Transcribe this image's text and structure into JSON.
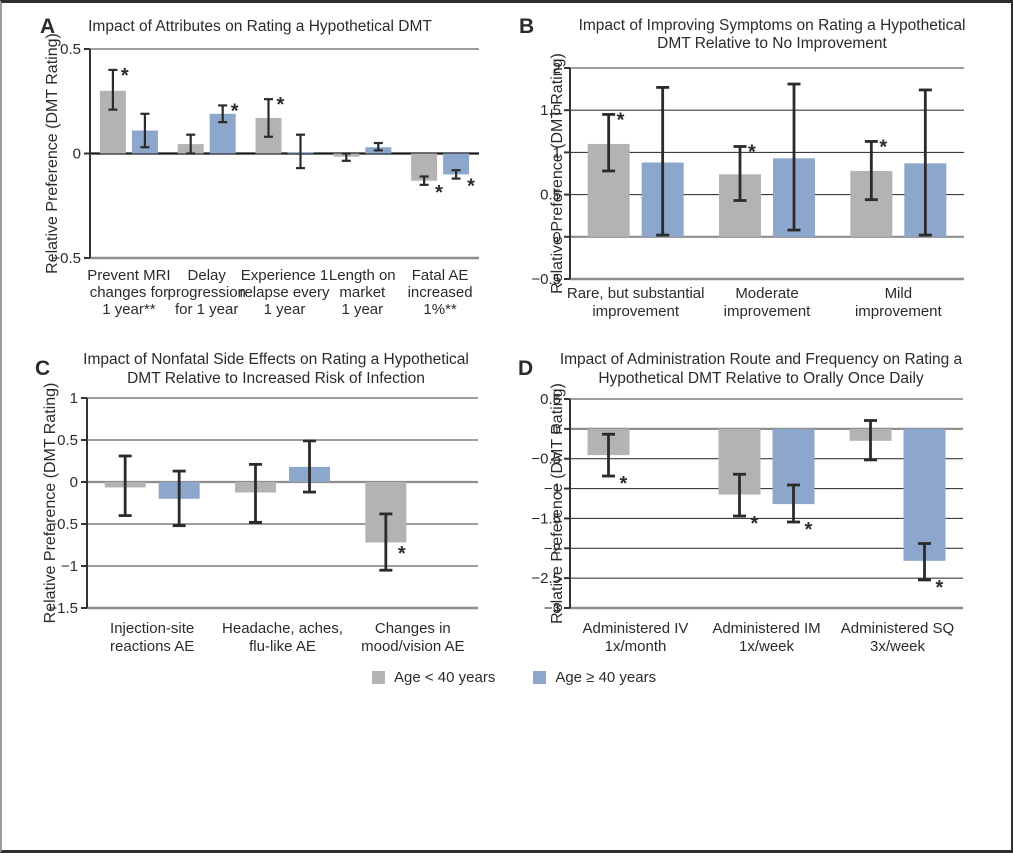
{
  "legend": {
    "items": [
      {
        "label": "Age < 40 years",
        "color": "#b3b3b3"
      },
      {
        "label": "Age ≥ 40 years",
        "color": "#8da6cc"
      }
    ]
  },
  "colors": {
    "bar_gray": "#b3b3b3",
    "bar_blue": "#8da6cc",
    "error_bar": "#2b2b2b",
    "gridline": "#3d3d3d",
    "zero_line_gray": "#8e8e8e",
    "zero_line_dark": "#1a1a1a",
    "bottom_line": "#8e8e8e",
    "axis": "#333333",
    "text": "#2b2b2b"
  },
  "chart_data": [
    {
      "id": "A",
      "type": "bar",
      "panel_label": "A",
      "title_lines": [
        "Impact of Attributes on Rating a Hypothetical DMT"
      ],
      "ylabel": "Relative Preference (DMT Rating)",
      "ylim": [
        -0.5,
        0.5
      ],
      "zero_dark": true,
      "grid": true,
      "ticks": [
        {
          "v": 0.5,
          "label": "0.5"
        },
        {
          "v": 0,
          "label": "0"
        },
        {
          "v": -0.5,
          "label": "−0.5"
        }
      ],
      "categories": [
        [
          "Prevent MRI",
          "changes for",
          "1 year**"
        ],
        [
          "Delay",
          "progression",
          "for 1 year"
        ],
        [
          "Experience 1",
          "relapse every",
          "1 year"
        ],
        [
          "Length on",
          "market",
          "1 year"
        ],
        [
          "Fatal AE",
          "increased",
          "1%**"
        ]
      ],
      "series": [
        {
          "name": "Age < 40 years",
          "color": "#b3b3b3",
          "points": [
            {
              "v": 0.3,
              "lo": 0.21,
              "hi": 0.4,
              "sig": true
            },
            {
              "v": 0.045,
              "lo": 0.0,
              "hi": 0.09
            },
            {
              "v": 0.17,
              "lo": 0.08,
              "hi": 0.26,
              "sig": true
            },
            {
              "v": -0.015,
              "lo": -0.035,
              "hi": 0.0
            },
            {
              "v": -0.13,
              "lo": -0.15,
              "hi": -0.11,
              "sig": true
            }
          ]
        },
        {
          "name": "Age ≥ 40 years",
          "color": "#8da6cc",
          "points": [
            {
              "v": 0.11,
              "lo": 0.03,
              "hi": 0.19
            },
            {
              "v": 0.19,
              "lo": 0.15,
              "hi": 0.23,
              "sig": true
            },
            {
              "v": 0.005,
              "lo": -0.07,
              "hi": 0.09
            },
            {
              "v": 0.03,
              "lo": 0.015,
              "hi": 0.05
            },
            {
              "v": -0.1,
              "lo": -0.12,
              "hi": -0.08,
              "sig": true
            }
          ]
        }
      ]
    },
    {
      "id": "B",
      "type": "bar",
      "panel_label": "B",
      "title_lines": [
        "Impact of Improving Symptoms on Rating a Hypothetical",
        "DMT Relative to No Improvement"
      ],
      "ylabel": "Relative Preference (DMT Rating)",
      "ylim": [
        -0.5,
        2
      ],
      "zero_dark": false,
      "grid": true,
      "ticks": [
        {
          "v": 2,
          "label": "2"
        },
        {
          "v": 1.5,
          "label": "1.5"
        },
        {
          "v": 1,
          "label": "1"
        },
        {
          "v": 0.5,
          "label": "0.5"
        },
        {
          "v": 0,
          "label": "0"
        },
        {
          "v": -0.5,
          "label": "−0.5"
        }
      ],
      "categories": [
        [
          "Rare, but substantial",
          "improvement"
        ],
        [
          "Moderate",
          "improvement"
        ],
        [
          "Mild",
          "improvement"
        ]
      ],
      "series": [
        {
          "name": "Age < 40 years",
          "color": "#b3b3b3",
          "points": [
            {
              "v": 1.1,
              "lo": 0.78,
              "hi": 1.45,
              "sig": true
            },
            {
              "v": 0.74,
              "lo": 0.43,
              "hi": 1.07,
              "sig": true
            },
            {
              "v": 0.78,
              "lo": 0.44,
              "hi": 1.13,
              "sig": true
            }
          ]
        },
        {
          "name": "Age ≥ 40 years",
          "color": "#8da6cc",
          "points": [
            {
              "v": 0.88,
              "lo": 0.02,
              "hi": 1.77
            },
            {
              "v": 0.93,
              "lo": 0.08,
              "hi": 1.81
            },
            {
              "v": 0.87,
              "lo": 0.02,
              "hi": 1.74
            }
          ]
        }
      ]
    },
    {
      "id": "C",
      "type": "bar",
      "panel_label": "C",
      "title_lines": [
        "Impact of Nonfatal Side Effects on Rating a Hypothetical",
        "DMT Relative to Increased Risk of Infection"
      ],
      "ylabel": "Relative Preference (DMT Rating)",
      "ylim": [
        -1.5,
        1
      ],
      "zero_dark": false,
      "grid": true,
      "ticks": [
        {
          "v": 1,
          "label": "1"
        },
        {
          "v": 0.5,
          "label": "0.5"
        },
        {
          "v": 0,
          "label": "0"
        },
        {
          "v": -0.5,
          "label": "−0.5"
        },
        {
          "v": -1,
          "label": "−1"
        },
        {
          "v": -1.5,
          "label": "−1.5"
        }
      ],
      "categories": [
        [
          "Injection-site",
          "reactions AE"
        ],
        [
          "Headache, aches,",
          "flu-like AE"
        ],
        [
          "Changes in",
          "mood/vision AE"
        ]
      ],
      "series": [
        {
          "name": "Age < 40 years",
          "color": "#b3b3b3",
          "points": [
            {
              "v": -0.065,
              "lo": -0.4,
              "hi": 0.31
            },
            {
              "v": -0.125,
              "lo": -0.48,
              "hi": 0.21
            },
            {
              "v": -0.72,
              "lo": -1.05,
              "hi": -0.38,
              "sig": true,
              "sig_pos": "side"
            }
          ]
        },
        {
          "name": "Age ≥ 40 years",
          "color": "#8da6cc",
          "points": [
            {
              "v": -0.2,
              "lo": -0.52,
              "hi": 0.13
            },
            {
              "v": 0.18,
              "lo": -0.12,
              "hi": 0.49
            },
            null
          ]
        }
      ]
    },
    {
      "id": "D",
      "type": "bar",
      "panel_label": "D",
      "title_lines": [
        "Impact of Administration Route and Frequency on Rating a",
        "Hypothetical DMT Relative to Orally Once Daily"
      ],
      "ylabel": "Relative Preference (DMT Rating)",
      "ylim": [
        -3,
        0.5
      ],
      "zero_dark": false,
      "grid": true,
      "ticks": [
        {
          "v": 0.5,
          "label": "0.5"
        },
        {
          "v": 0,
          "label": "0"
        },
        {
          "v": -0.5,
          "label": "−0.5"
        },
        {
          "v": -1,
          "label": "−1"
        },
        {
          "v": -1.5,
          "label": "−1.5"
        },
        {
          "v": -2,
          "label": "−2"
        },
        {
          "v": -2.5,
          "label": "−2.5"
        },
        {
          "v": -3,
          "label": "−3"
        }
      ],
      "categories": [
        [
          "Administered IV",
          "1x/month"
        ],
        [
          "Administered IM",
          "1x/week"
        ],
        [
          "Administered SQ",
          "3x/week"
        ]
      ],
      "series": [
        {
          "name": "Age < 40 years",
          "color": "#b3b3b3",
          "points": [
            {
              "v": -0.44,
              "lo": -0.79,
              "hi": -0.09,
              "sig": true
            },
            {
              "v": -1.1,
              "lo": -1.46,
              "hi": -0.76,
              "sig": true
            },
            {
              "v": -0.2,
              "lo": -0.52,
              "hi": 0.14
            }
          ]
        },
        {
          "name": "Age ≥ 40 years",
          "color": "#8da6cc",
          "points": [
            null,
            {
              "v": -1.26,
              "lo": -1.56,
              "hi": -0.94,
              "sig": true
            },
            {
              "v": -2.21,
              "lo": -2.53,
              "hi": -1.92,
              "sig": true
            }
          ]
        }
      ]
    }
  ]
}
